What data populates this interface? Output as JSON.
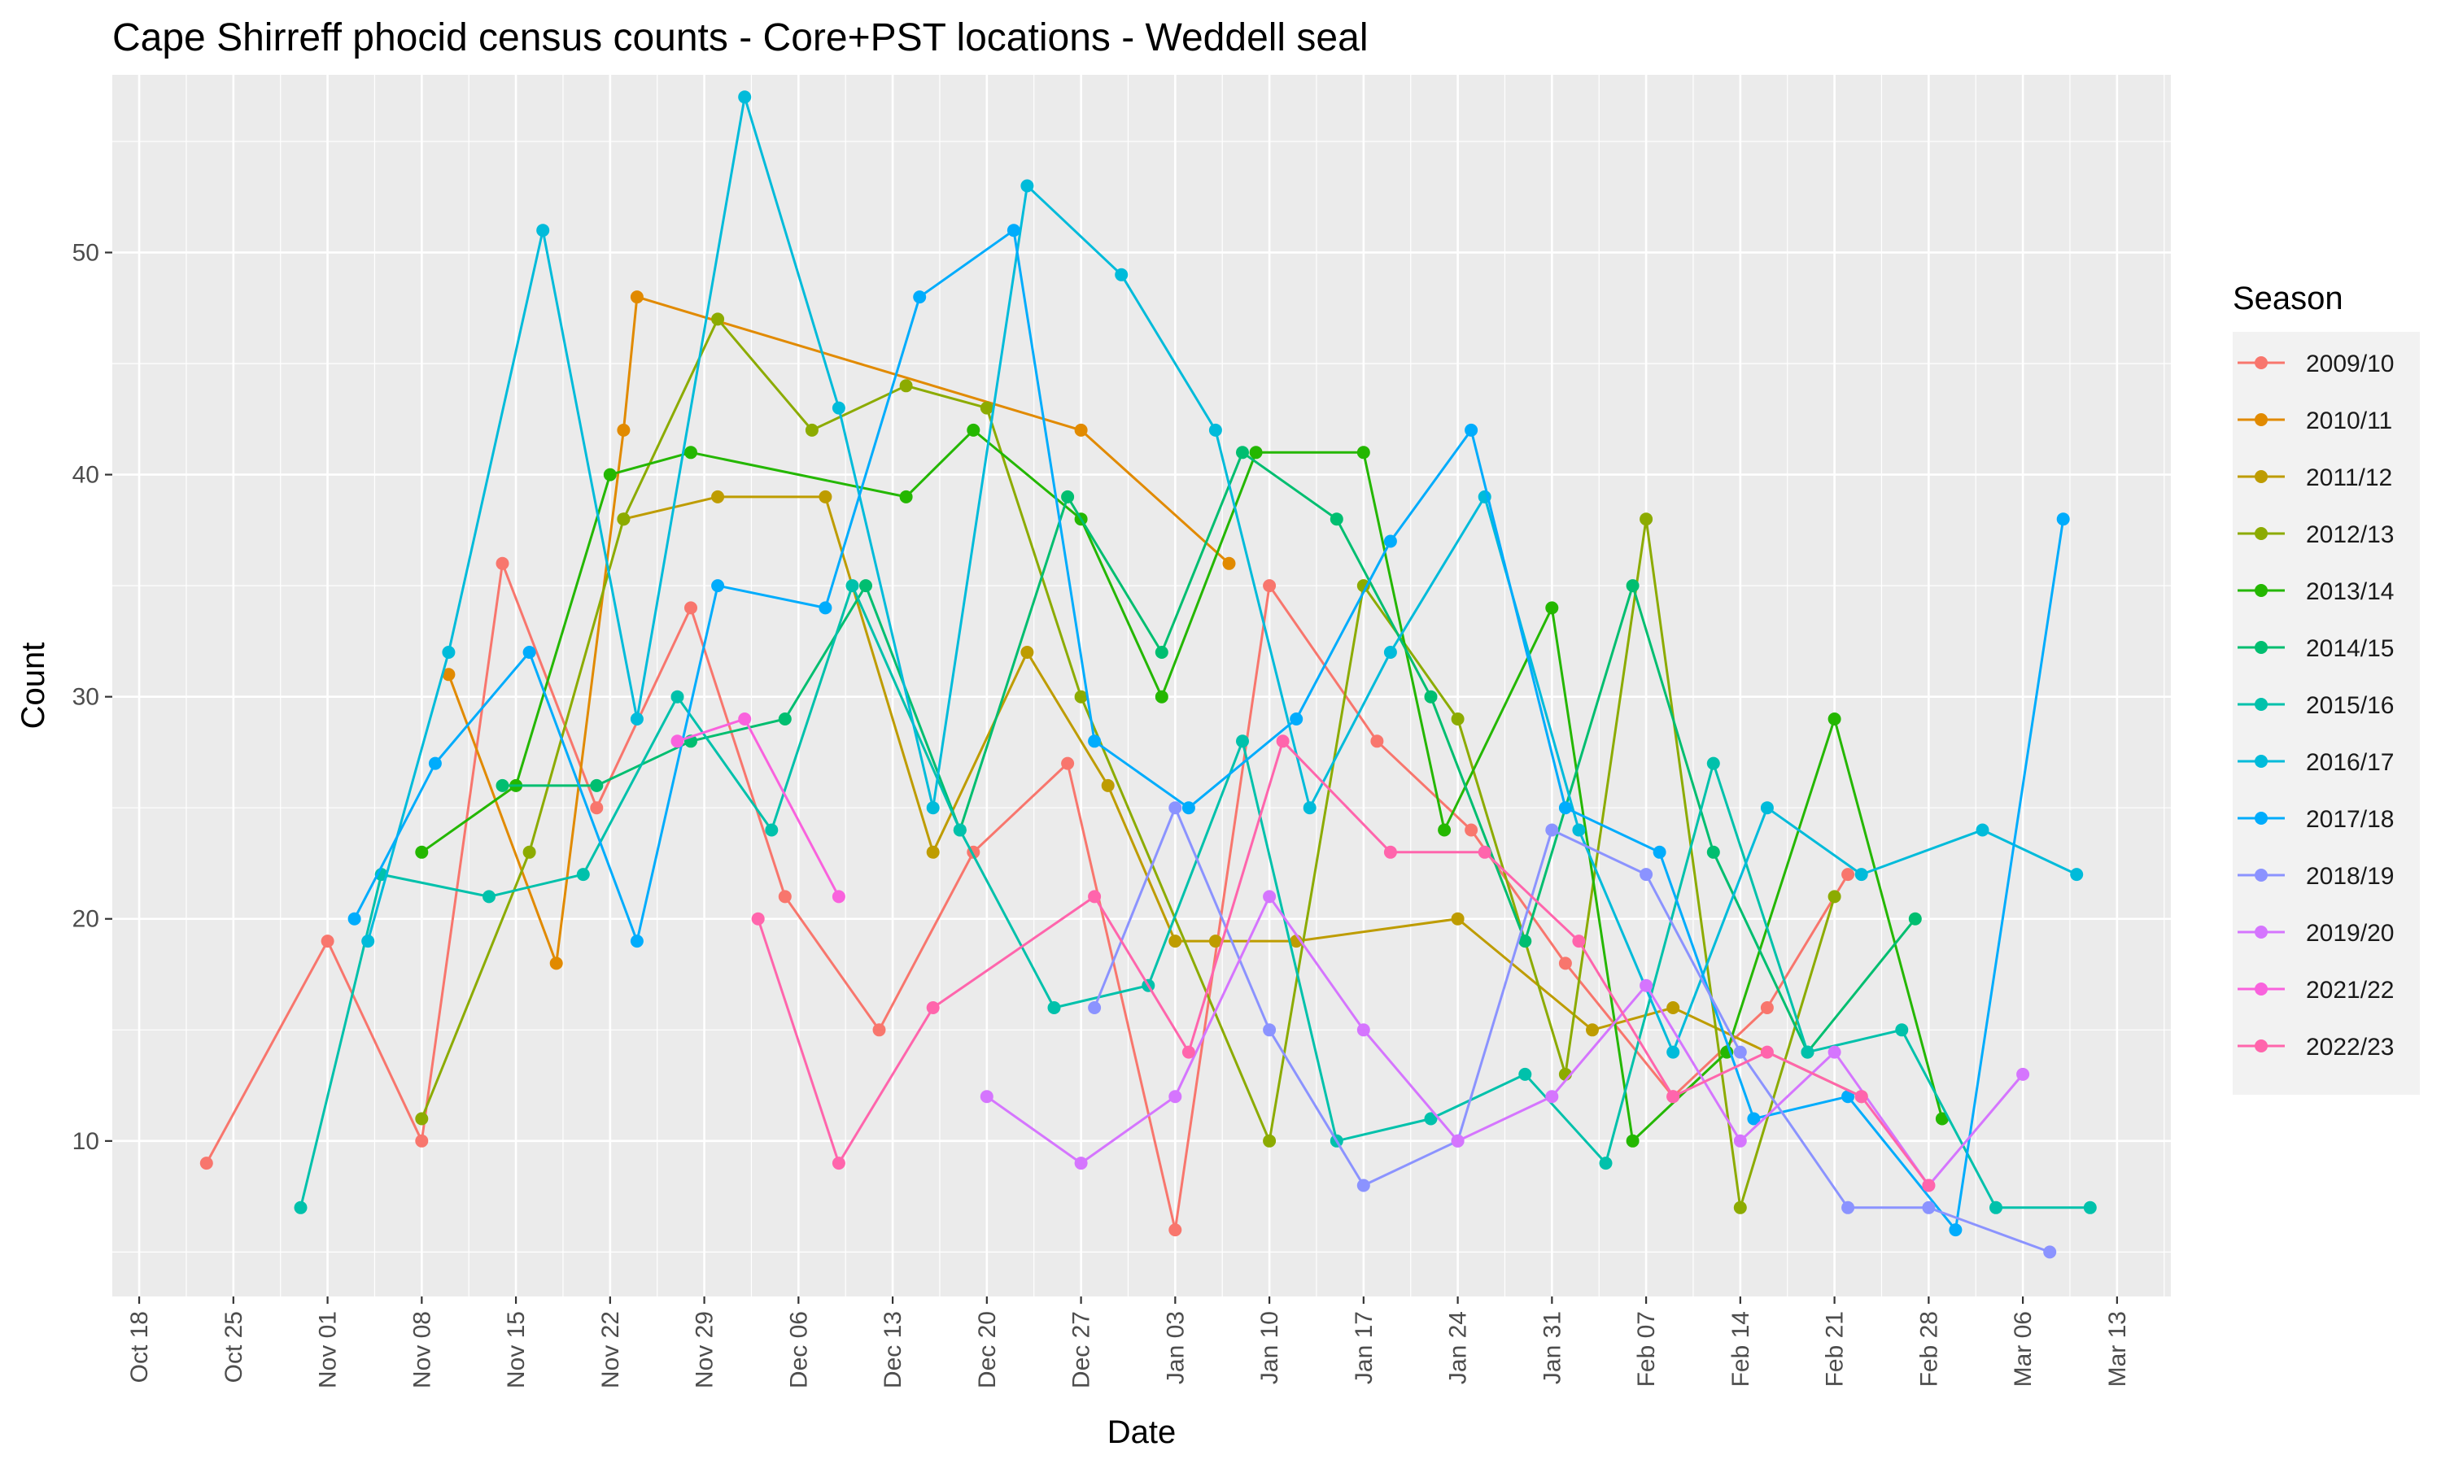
{
  "chart_data": {
    "type": "line",
    "title": "Cape Shirreff phocid census counts - Core+PST locations - Weddell seal",
    "xlabel": "Date",
    "ylabel": "Count",
    "x_axis": {
      "type": "date",
      "range": [
        "Oct 16",
        "Mar 17"
      ],
      "ticks": [
        "Oct 18",
        "Oct 25",
        "Nov 01",
        "Nov 08",
        "Nov 15",
        "Nov 22",
        "Nov 29",
        "Dec 06",
        "Dec 13",
        "Dec 20",
        "Dec 27",
        "Jan 03",
        "Jan 10",
        "Jan 17",
        "Jan 24",
        "Jan 31",
        "Feb 07",
        "Feb 14",
        "Feb 21",
        "Feb 28",
        "Mar 06",
        "Mar 13"
      ]
    },
    "y_axis": {
      "range": [
        3,
        58
      ],
      "ticks": [
        10,
        20,
        30,
        40,
        50
      ]
    },
    "grid": true,
    "legend": {
      "title": "Season",
      "position": "right"
    },
    "series": [
      {
        "name": "2009/10",
        "color": "#F8766D",
        "points": [
          [
            "Oct 23",
            9
          ],
          [
            "Nov 01",
            19
          ],
          [
            "Nov 08",
            10
          ],
          [
            "Nov 14",
            36
          ],
          [
            "Nov 21",
            25
          ],
          [
            "Nov 28",
            34
          ],
          [
            "Dec 05",
            21
          ],
          [
            "Dec 12",
            15
          ],
          [
            "Dec 19",
            23
          ],
          [
            "Dec 26",
            27
          ],
          [
            "Jan 03",
            6
          ],
          [
            "Jan 10",
            35
          ],
          [
            "Jan 18",
            28
          ],
          [
            "Jan 25",
            24
          ],
          [
            "Feb 01",
            18
          ],
          [
            "Feb 09",
            12
          ],
          [
            "Feb 16",
            16
          ],
          [
            "Feb 22",
            22
          ]
        ]
      },
      {
        "name": "2010/11",
        "color": "#E18A00",
        "points": [
          [
            "Nov 10",
            31
          ],
          [
            "Nov 18",
            18
          ],
          [
            "Nov 23",
            42
          ],
          [
            "Nov 24",
            48
          ],
          [
            "Dec 27",
            42
          ],
          [
            "Jan 07",
            36
          ]
        ]
      },
      {
        "name": "2011/12",
        "color": "#BE9C00",
        "points": [
          [
            "Nov 23",
            38
          ],
          [
            "Nov 30",
            39
          ],
          [
            "Dec 08",
            39
          ],
          [
            "Dec 16",
            23
          ],
          [
            "Dec 23",
            32
          ],
          [
            "Dec 29",
            26
          ],
          [
            "Jan 03",
            19
          ],
          [
            "Jan 06",
            19
          ],
          [
            "Jan 12",
            19
          ],
          [
            "Jan 24",
            20
          ],
          [
            "Feb 03",
            15
          ],
          [
            "Feb 09",
            16
          ],
          [
            "Feb 23",
            12
          ]
        ]
      },
      {
        "name": "2012/13",
        "color": "#8CAB00",
        "points": [
          [
            "Nov 08",
            11
          ],
          [
            "Nov 16",
            23
          ],
          [
            "Nov 23",
            38
          ],
          [
            "Nov 30",
            47
          ],
          [
            "Dec 07",
            42
          ],
          [
            "Dec 14",
            44
          ],
          [
            "Dec 20",
            43
          ],
          [
            "Dec 27",
            30
          ],
          [
            "Jan 10",
            10
          ],
          [
            "Jan 17",
            35
          ],
          [
            "Jan 24",
            29
          ],
          [
            "Feb 01",
            13
          ],
          [
            "Feb 07",
            38
          ],
          [
            "Feb 14",
            7
          ],
          [
            "Feb 21",
            21
          ]
        ]
      },
      {
        "name": "2013/14",
        "color": "#24B700",
        "points": [
          [
            "Nov 08",
            23
          ],
          [
            "Nov 15",
            26
          ],
          [
            "Nov 22",
            40
          ],
          [
            "Nov 28",
            41
          ],
          [
            "Dec 14",
            39
          ],
          [
            "Dec 19",
            42
          ],
          [
            "Dec 27",
            38
          ],
          [
            "Jan 02",
            30
          ],
          [
            "Jan 09",
            41
          ],
          [
            "Jan 17",
            41
          ],
          [
            "Jan 23",
            24
          ],
          [
            "Jan 31",
            34
          ],
          [
            "Feb 06",
            10
          ],
          [
            "Feb 13",
            14
          ],
          [
            "Feb 21",
            29
          ],
          [
            "Feb 29",
            11
          ]
        ]
      },
      {
        "name": "2014/15",
        "color": "#00BE70",
        "points": [
          [
            "Nov 14",
            26
          ],
          [
            "Nov 21",
            26
          ],
          [
            "Nov 28",
            28
          ],
          [
            "Dec 05",
            29
          ],
          [
            "Dec 11",
            35
          ],
          [
            "Dec 18",
            24
          ],
          [
            "Dec 26",
            39
          ],
          [
            "Jan 02",
            32
          ],
          [
            "Jan 08",
            41
          ],
          [
            "Jan 15",
            38
          ],
          [
            "Jan 22",
            30
          ],
          [
            "Jan 29",
            19
          ],
          [
            "Feb 06",
            35
          ],
          [
            "Feb 12",
            23
          ],
          [
            "Feb 19",
            14
          ],
          [
            "Feb 27",
            20
          ]
        ]
      },
      {
        "name": "2015/16",
        "color": "#00C1AB",
        "points": [
          [
            "Oct 30",
            7
          ],
          [
            "Nov 05",
            22
          ],
          [
            "Nov 13",
            21
          ],
          [
            "Nov 20",
            22
          ],
          [
            "Nov 27",
            30
          ],
          [
            "Dec 04",
            24
          ],
          [
            "Dec 10",
            35
          ],
          [
            "Dec 18",
            24
          ],
          [
            "Dec 25",
            16
          ],
          [
            "Jan 01",
            17
          ],
          [
            "Jan 08",
            28
          ],
          [
            "Jan 15",
            10
          ],
          [
            "Jan 22",
            11
          ],
          [
            "Jan 29",
            13
          ],
          [
            "Feb 04",
            9
          ],
          [
            "Feb 12",
            27
          ],
          [
            "Feb 19",
            14
          ],
          [
            "Feb 26",
            15
          ],
          [
            "Mar 04",
            7
          ],
          [
            "Mar 11",
            7
          ]
        ]
      },
      {
        "name": "2016/17",
        "color": "#00BBDA",
        "points": [
          [
            "Nov 04",
            19
          ],
          [
            "Nov 10",
            32
          ],
          [
            "Nov 17",
            51
          ],
          [
            "Nov 24",
            29
          ],
          [
            "Dec 02",
            57
          ],
          [
            "Dec 09",
            43
          ],
          [
            "Dec 16",
            25
          ],
          [
            "Dec 23",
            53
          ],
          [
            "Dec 30",
            49
          ],
          [
            "Jan 06",
            42
          ],
          [
            "Jan 13",
            25
          ],
          [
            "Jan 19",
            32
          ],
          [
            "Jan 26",
            39
          ],
          [
            "Feb 02",
            24
          ],
          [
            "Feb 09",
            14
          ],
          [
            "Feb 16",
            25
          ],
          [
            "Feb 23",
            22
          ],
          [
            "Mar 03",
            24
          ],
          [
            "Mar 10",
            22
          ]
        ]
      },
      {
        "name": "2017/18",
        "color": "#00ACFC",
        "points": [
          [
            "Nov 03",
            20
          ],
          [
            "Nov 09",
            27
          ],
          [
            "Nov 16",
            32
          ],
          [
            "Nov 24",
            19
          ],
          [
            "Nov 30",
            35
          ],
          [
            "Dec 08",
            34
          ],
          [
            "Dec 15",
            48
          ],
          [
            "Dec 22",
            51
          ],
          [
            "Dec 28",
            28
          ],
          [
            "Jan 04",
            25
          ],
          [
            "Jan 12",
            29
          ],
          [
            "Jan 19",
            37
          ],
          [
            "Jan 25",
            42
          ],
          [
            "Feb 01",
            25
          ],
          [
            "Feb 08",
            23
          ],
          [
            "Feb 15",
            11
          ],
          [
            "Feb 22",
            12
          ],
          [
            "Mar 01",
            6
          ],
          [
            "Mar 09",
            38
          ]
        ]
      },
      {
        "name": "2018/19",
        "color": "#8B93FF",
        "points": [
          [
            "Dec 28",
            16
          ],
          [
            "Jan 03",
            25
          ],
          [
            "Jan 10",
            15
          ],
          [
            "Jan 17",
            8
          ],
          [
            "Jan 24",
            10
          ],
          [
            "Jan 31",
            24
          ],
          [
            "Feb 07",
            22
          ],
          [
            "Feb 14",
            14
          ],
          [
            "Feb 22",
            7
          ],
          [
            "Feb 28",
            7
          ],
          [
            "Mar 08",
            5
          ]
        ]
      },
      {
        "name": "2019/20",
        "color": "#D575FE",
        "points": [
          [
            "Dec 20",
            12
          ],
          [
            "Dec 27",
            9
          ],
          [
            "Jan 03",
            12
          ],
          [
            "Jan 10",
            21
          ],
          [
            "Jan 17",
            15
          ],
          [
            "Jan 24",
            10
          ],
          [
            "Jan 31",
            12
          ],
          [
            "Feb 07",
            17
          ],
          [
            "Feb 14",
            10
          ],
          [
            "Feb 21",
            14
          ],
          [
            "Feb 28",
            8
          ],
          [
            "Mar 06",
            13
          ]
        ]
      },
      {
        "name": "2021/22",
        "color": "#F962DD",
        "points": [
          [
            "Nov 27",
            28
          ],
          [
            "Dec 02",
            29
          ],
          [
            "Dec 09",
            21
          ]
        ]
      },
      {
        "name": "2022/23",
        "color": "#FF65AC",
        "points": [
          [
            "Dec 03",
            20
          ],
          [
            "Dec 09",
            9
          ],
          [
            "Dec 16",
            16
          ],
          [
            "Dec 28",
            21
          ],
          [
            "Jan 04",
            14
          ],
          [
            "Jan 11",
            28
          ],
          [
            "Jan 19",
            23
          ],
          [
            "Jan 26",
            23
          ],
          [
            "Feb 02",
            19
          ],
          [
            "Feb 09",
            12
          ],
          [
            "Feb 16",
            14
          ],
          [
            "Feb 23",
            12
          ],
          [
            "Feb 28",
            8
          ]
        ]
      }
    ]
  }
}
